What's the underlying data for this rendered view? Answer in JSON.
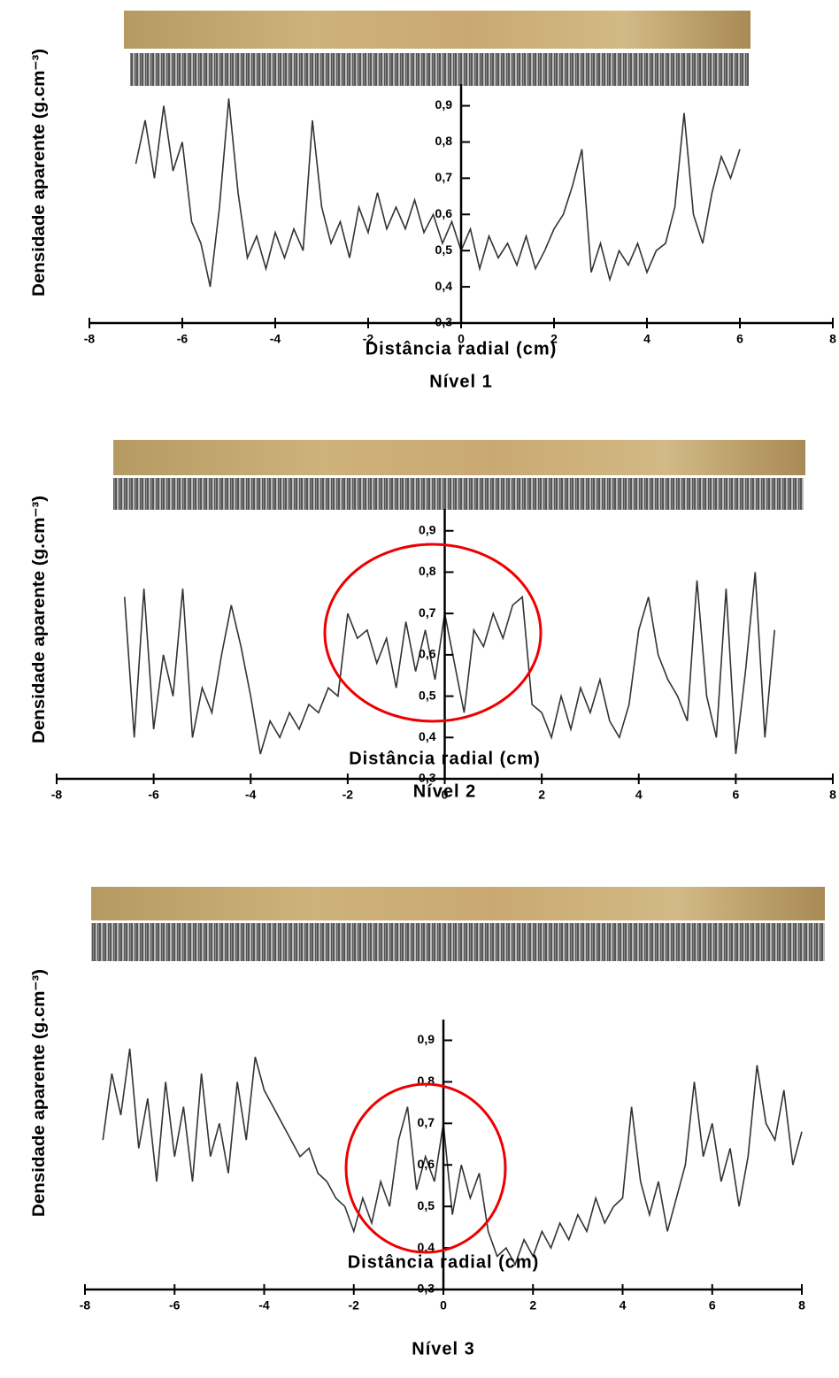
{
  "chart_data": [
    {
      "type": "line",
      "title": "Nível 1",
      "xlabel": "Distância radial (cm)",
      "ylabel": "Densidade aparente (g.cm⁻³)",
      "xlim": [
        -8,
        8
      ],
      "xticks": [
        -8,
        -6,
        -4,
        -2,
        0,
        2,
        4,
        6,
        8
      ],
      "ylim": [
        0.3,
        0.96
      ],
      "yticks": [
        {
          "value": 0.3,
          "label": "0,3"
        },
        {
          "value": 0.4,
          "label": "0,4"
        },
        {
          "value": 0.5,
          "label": "0,5"
        },
        {
          "value": 0.6,
          "label": "0,6"
        },
        {
          "value": 0.7,
          "label": "0,7"
        },
        {
          "value": 0.8,
          "label": "0,8"
        },
        {
          "value": 0.9,
          "label": "0,9"
        }
      ],
      "color": "#333333",
      "x": [
        -7.0,
        -6.8,
        -6.6,
        -6.4,
        -6.2,
        -6.0,
        -5.8,
        -5.6,
        -5.4,
        -5.2,
        -5.0,
        -4.8,
        -4.6,
        -4.4,
        -4.2,
        -4.0,
        -3.8,
        -3.6,
        -3.4,
        -3.2,
        -3.0,
        -2.8,
        -2.6,
        -2.4,
        -2.2,
        -2.0,
        -1.8,
        -1.6,
        -1.4,
        -1.2,
        -1.0,
        -0.8,
        -0.6,
        -0.4,
        -0.2,
        0.0,
        0.2,
        0.4,
        0.6,
        0.8,
        1.0,
        1.2,
        1.4,
        1.6,
        1.8,
        2.0,
        2.2,
        2.4,
        2.6,
        2.8,
        3.0,
        3.2,
        3.4,
        3.6,
        3.8,
        4.0,
        4.2,
        4.4,
        4.6,
        4.8,
        5.0,
        5.2,
        5.4,
        5.6,
        5.8,
        6.0
      ],
      "values": [
        0.74,
        0.86,
        0.7,
        0.9,
        0.72,
        0.8,
        0.58,
        0.52,
        0.4,
        0.62,
        0.92,
        0.66,
        0.48,
        0.54,
        0.45,
        0.55,
        0.48,
        0.56,
        0.5,
        0.86,
        0.62,
        0.52,
        0.58,
        0.48,
        0.62,
        0.55,
        0.66,
        0.56,
        0.62,
        0.56,
        0.64,
        0.55,
        0.6,
        0.52,
        0.58,
        0.5,
        0.56,
        0.45,
        0.54,
        0.48,
        0.52,
        0.46,
        0.54,
        0.45,
        0.5,
        0.56,
        0.6,
        0.68,
        0.78,
        0.44,
        0.52,
        0.42,
        0.5,
        0.46,
        0.52,
        0.44,
        0.5,
        0.52,
        0.62,
        0.88,
        0.6,
        0.52,
        0.66,
        0.76,
        0.7,
        0.78
      ]
    },
    {
      "type": "line",
      "title": "Nível 2",
      "xlabel": "Distância radial (cm)",
      "ylabel": "Densidade aparente (g.cm⁻³)",
      "xlim": [
        -8,
        8
      ],
      "xticks": [
        -8,
        -6,
        -4,
        -2,
        0,
        2,
        4,
        6,
        8
      ],
      "ylim": [
        0.3,
        0.953
      ],
      "yticks": [
        {
          "value": 0.3,
          "label": "0,3"
        },
        {
          "value": 0.4,
          "label": "0,4"
        },
        {
          "value": 0.5,
          "label": "0,5"
        },
        {
          "value": 0.6,
          "label": "0,6"
        },
        {
          "value": 0.7,
          "label": "0,7"
        },
        {
          "value": 0.8,
          "label": "0,8"
        },
        {
          "value": 0.9,
          "label": "0,9"
        }
      ],
      "color": "#333333",
      "x": [
        -6.6,
        -6.4,
        -6.2,
        -6.0,
        -5.8,
        -5.6,
        -5.4,
        -5.2,
        -5.0,
        -4.8,
        -4.6,
        -4.4,
        -4.2,
        -4.0,
        -3.8,
        -3.6,
        -3.4,
        -3.2,
        -3.0,
        -2.8,
        -2.6,
        -2.4,
        -2.2,
        -2.0,
        -1.8,
        -1.6,
        -1.4,
        -1.2,
        -1.0,
        -0.8,
        -0.6,
        -0.4,
        -0.2,
        0.0,
        0.2,
        0.4,
        0.6,
        0.8,
        1.0,
        1.2,
        1.4,
        1.6,
        1.8,
        2.0,
        2.2,
        2.4,
        2.6,
        2.8,
        3.0,
        3.2,
        3.4,
        3.6,
        3.8,
        4.0,
        4.2,
        4.4,
        4.6,
        4.8,
        5.0,
        5.2,
        5.4,
        5.6,
        5.8,
        6.0,
        6.2,
        6.4,
        6.6,
        6.8
      ],
      "values": [
        0.74,
        0.4,
        0.76,
        0.42,
        0.6,
        0.5,
        0.76,
        0.4,
        0.52,
        0.46,
        0.6,
        0.72,
        0.62,
        0.5,
        0.36,
        0.44,
        0.4,
        0.46,
        0.42,
        0.48,
        0.46,
        0.52,
        0.5,
        0.7,
        0.64,
        0.66,
        0.58,
        0.64,
        0.52,
        0.68,
        0.56,
        0.66,
        0.54,
        0.7,
        0.58,
        0.46,
        0.66,
        0.62,
        0.7,
        0.64,
        0.72,
        0.74,
        0.48,
        0.46,
        0.4,
        0.5,
        0.42,
        0.52,
        0.46,
        0.54,
        0.44,
        0.4,
        0.48,
        0.66,
        0.74,
        0.6,
        0.54,
        0.5,
        0.44,
        0.78,
        0.5,
        0.4,
        0.76,
        0.36,
        0.56,
        0.8,
        0.4,
        0.66
      ]
    },
    {
      "type": "line",
      "title": "Nível 3",
      "xlabel": "Distância radial (cm)",
      "ylabel": "Densidade aparente (g.cm⁻³)",
      "xlim": [
        -8,
        8
      ],
      "xticks": [
        -8,
        -6,
        -4,
        -2,
        0,
        2,
        4,
        6,
        8
      ],
      "ylim": [
        0.3,
        0.95
      ],
      "yticks": [
        {
          "value": 0.3,
          "label": "0,3"
        },
        {
          "value": 0.4,
          "label": "0,4"
        },
        {
          "value": 0.5,
          "label": "0,5"
        },
        {
          "value": 0.6,
          "label": "0,6"
        },
        {
          "value": 0.7,
          "label": "0,7"
        },
        {
          "value": 0.8,
          "label": "0,8"
        },
        {
          "value": 0.9,
          "label": "0,9"
        }
      ],
      "color": "#333333",
      "x": [
        -7.6,
        -7.4,
        -7.2,
        -7.0,
        -6.8,
        -6.6,
        -6.4,
        -6.2,
        -6.0,
        -5.8,
        -5.6,
        -5.4,
        -5.2,
        -5.0,
        -4.8,
        -4.6,
        -4.4,
        -4.2,
        -4.0,
        -3.8,
        -3.6,
        -3.4,
        -3.2,
        -3.0,
        -2.8,
        -2.6,
        -2.4,
        -2.2,
        -2.0,
        -1.8,
        -1.6,
        -1.4,
        -1.2,
        -1.0,
        -0.8,
        -0.6,
        -0.4,
        -0.2,
        0.0,
        0.2,
        0.4,
        0.6,
        0.8,
        1.0,
        1.2,
        1.4,
        1.6,
        1.8,
        2.0,
        2.2,
        2.4,
        2.6,
        2.8,
        3.0,
        3.2,
        3.4,
        3.6,
        3.8,
        4.0,
        4.2,
        4.4,
        4.6,
        4.8,
        5.0,
        5.2,
        5.4,
        5.6,
        5.8,
        6.0,
        6.2,
        6.4,
        6.6,
        6.8,
        7.0,
        7.2,
        7.4,
        7.6,
        7.8,
        8.0
      ],
      "values": [
        0.66,
        0.82,
        0.72,
        0.88,
        0.64,
        0.76,
        0.56,
        0.8,
        0.62,
        0.74,
        0.56,
        0.82,
        0.62,
        0.7,
        0.58,
        0.8,
        0.66,
        0.86,
        0.78,
        0.74,
        0.7,
        0.66,
        0.62,
        0.64,
        0.58,
        0.56,
        0.52,
        0.5,
        0.44,
        0.52,
        0.46,
        0.56,
        0.5,
        0.66,
        0.74,
        0.54,
        0.62,
        0.56,
        0.7,
        0.48,
        0.6,
        0.52,
        0.58,
        0.44,
        0.38,
        0.4,
        0.36,
        0.42,
        0.38,
        0.44,
        0.4,
        0.46,
        0.42,
        0.48,
        0.44,
        0.52,
        0.46,
        0.5,
        0.52,
        0.74,
        0.56,
        0.48,
        0.56,
        0.44,
        0.52,
        0.6,
        0.8,
        0.62,
        0.7,
        0.56,
        0.64,
        0.5,
        0.62,
        0.84,
        0.7,
        0.66,
        0.78,
        0.6,
        0.68
      ]
    }
  ]
}
